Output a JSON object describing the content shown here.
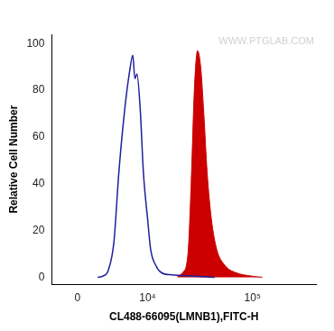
{
  "chart_data": {
    "type": "line",
    "xlabel": "CL488-66095(LMNB1),FITC-H",
    "ylabel": "Relative Cell Number",
    "annotations": [
      {
        "text": "WWW.PTGLAB.COM"
      }
    ],
    "xlim": [
      -2700,
      390000
    ],
    "xticks": [
      0,
      {
        "value": 10000,
        "label": "10⁴"
      },
      {
        "value": 100000,
        "label": "10⁵"
      }
    ],
    "ylim": [
      -3,
      104
    ],
    "yticks": [
      0,
      20,
      40,
      60,
      80,
      100
    ],
    "grid": false,
    "series": [
      {
        "type": "line",
        "color": "#1f1f9e",
        "x": [
          2090,
          2690,
          3316,
          4035,
          4720,
          5520,
          6380,
          6944,
          7330,
          7720,
          8370,
          9040,
          10000,
          10740,
          12140,
          13730,
          17480,
          27830,
          44100
        ],
        "values": [
          0,
          0.5,
          3,
          15,
          45,
          70,
          88,
          95,
          85,
          87,
          72,
          45,
          25,
          12,
          5,
          2,
          1,
          0.5,
          0
        ]
      },
      {
        "type": "area",
        "color": "#cc0000",
        "x": [
          19660,
          22100,
          24800,
          26600,
          28500,
          30540,
          32700,
          35000,
          37590,
          41200,
          46200,
          55400,
          69600,
          98100,
          123700
        ],
        "values": [
          0.5,
          2,
          10,
          40,
          80,
          97,
          90,
          70,
          45,
          25,
          12,
          5,
          2,
          0.5,
          0
        ]
      }
    ]
  }
}
